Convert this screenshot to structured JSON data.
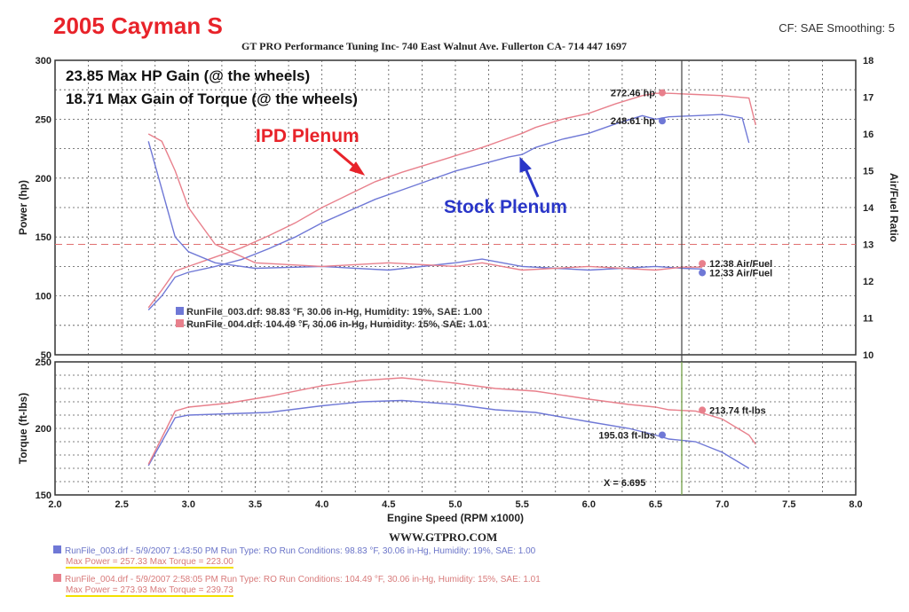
{
  "header": {
    "title": "2005 Cayman S",
    "cf_smoothing": "CF: SAE  Smoothing: 5",
    "shop": "GT PRO Performance Tuning Inc- 740 East Walnut Ave. Fullerton CA- 714 447 1697"
  },
  "annotations": {
    "hp_gain": "23.85 Max HP Gain (@ the wheels)",
    "torque_gain": "18.71 Max Gain of Torque (@ the wheels)",
    "ipd_label": "IPD Plenum",
    "stock_label": "Stock Plenum",
    "cursor": "X = 6.695"
  },
  "legend": {
    "run1": "RunFile_003.drf: 98.83 °F, 30.06 in-Hg, Humidity: 19%, SAE: 1.00",
    "run2": "RunFile_004.drf: 104.49 °F, 30.06 in-Hg, Humidity: 15%, SAE: 1.01"
  },
  "footer": {
    "website": "WWW.GTPRO.COM",
    "run1_line1": "RunFile_003.drf - 5/9/2007 1:43:50 PM  Run Type: RO  Run Conditions: 98.83 °F, 30.06 in-Hg,  Humidity: 19%,  SAE: 1.00",
    "run1_line2": "Max Power = 257.33  Max Torque = 223.00",
    "run2_line1": "RunFile_004.drf - 5/9/2007 2:58:05 PM  Run Type: RO  Run Conditions: 104.49 °F, 30.06 in-Hg,  Humidity: 15%,  SAE: 1.01",
    "run2_line2": "Max Power = 273.93  Max Torque = 239.73"
  },
  "colors": {
    "stock": "#6f78d6",
    "ipd": "#e8808c",
    "title_red": "#e8232a",
    "label_blue": "#2a36c8"
  },
  "chart_data": [
    {
      "type": "line",
      "ylabel": "Power (hp)",
      "y2label": "Air/Fuel Ratio",
      "xlim": [
        2.0,
        8.0
      ],
      "ylim": [
        50,
        300
      ],
      "y2lim": [
        10,
        18
      ],
      "y_ticks": [
        "50",
        "100",
        "150",
        "200",
        "250",
        "300"
      ],
      "y2_ticks": [
        "10",
        "11",
        "12",
        "13",
        "14",
        "15",
        "16",
        "17",
        "18"
      ],
      "grid": true,
      "series": [
        {
          "name": "Stock Plenum",
          "color": "#6f78d6",
          "x": [
            2.7,
            2.8,
            2.9,
            3.0,
            3.2,
            3.4,
            3.6,
            3.8,
            4.0,
            4.2,
            4.4,
            4.6,
            4.8,
            5.0,
            5.2,
            5.4,
            5.5,
            5.6,
            5.8,
            6.0,
            6.2,
            6.4,
            6.5,
            6.6,
            6.8,
            7.0,
            7.15,
            7.2
          ],
          "y": [
            88,
            100,
            116,
            120,
            125,
            131,
            140,
            150,
            162,
            172,
            182,
            190,
            198,
            206,
            212,
            218,
            220,
            226,
            233,
            238,
            246,
            253,
            250,
            252,
            253,
            254,
            251,
            230
          ]
        },
        {
          "name": "IPD Plenum",
          "color": "#e8808c",
          "x": [
            2.7,
            2.8,
            2.9,
            3.0,
            3.2,
            3.4,
            3.6,
            3.8,
            4.0,
            4.2,
            4.4,
            4.6,
            4.8,
            5.0,
            5.2,
            5.4,
            5.5,
            5.6,
            5.8,
            6.0,
            6.2,
            6.4,
            6.5,
            6.6,
            6.8,
            7.0,
            7.2,
            7.25
          ],
          "y": [
            90,
            105,
            121,
            125,
            133,
            141,
            151,
            162,
            175,
            186,
            197,
            205,
            212,
            219,
            226,
            234,
            238,
            243,
            250,
            255,
            263,
            270,
            272,
            272,
            271,
            270,
            268,
            245
          ]
        },
        {
          "name": "Stock Air/Fuel",
          "axis": "y2",
          "color": "#6f78d6",
          "x": [
            2.7,
            2.8,
            2.9,
            3.0,
            3.2,
            3.5,
            4.0,
            4.5,
            5.0,
            5.2,
            5.5,
            6.0,
            6.5,
            6.7,
            6.85
          ],
          "y": [
            15.8,
            14.5,
            13.2,
            12.8,
            12.5,
            12.35,
            12.4,
            12.3,
            12.5,
            12.6,
            12.4,
            12.3,
            12.4,
            12.35,
            12.33
          ]
        },
        {
          "name": "IPD Air/Fuel",
          "axis": "y2",
          "color": "#e8808c",
          "x": [
            2.7,
            2.8,
            2.9,
            3.0,
            3.2,
            3.5,
            4.0,
            4.5,
            5.0,
            5.2,
            5.5,
            6.0,
            6.5,
            6.7,
            6.85
          ],
          "y": [
            16.0,
            15.8,
            15.0,
            14.0,
            13.0,
            12.5,
            12.4,
            12.5,
            12.4,
            12.5,
            12.3,
            12.4,
            12.3,
            12.38,
            12.38
          ]
        }
      ],
      "reference_line": {
        "axis": "y2",
        "value": 13.0
      },
      "end_labels": [
        {
          "text": "272.46 hp",
          "x": 6.55,
          "y": 272.46,
          "axis": "y"
        },
        {
          "text": "248.61 hp",
          "x": 6.55,
          "y": 248.61,
          "axis": "y"
        },
        {
          "text": "12.38 Air/Fuel",
          "x": 6.85,
          "y": 12.48,
          "axis": "y2"
        },
        {
          "text": "12.33 Air/Fuel",
          "x": 6.85,
          "y": 12.23,
          "axis": "y2"
        }
      ]
    },
    {
      "type": "line",
      "ylabel": "Torque (ft-lbs)",
      "xlabel": "Engine Speed (RPM x1000)",
      "xlim": [
        2.0,
        8.0
      ],
      "ylim": [
        150,
        250
      ],
      "x_ticks": [
        "2.0",
        "2.5",
        "3.0",
        "3.5",
        "4.0",
        "4.5",
        "5.0",
        "5.5",
        "6.0",
        "6.5",
        "7.0",
        "7.5",
        "8.0"
      ],
      "y_ticks": [
        "150",
        "200",
        "250"
      ],
      "grid": true,
      "series": [
        {
          "name": "Stock Plenum",
          "color": "#6f78d6",
          "x": [
            2.7,
            2.8,
            2.9,
            3.0,
            3.3,
            3.6,
            4.0,
            4.3,
            4.6,
            5.0,
            5.3,
            5.6,
            6.0,
            6.3,
            6.5,
            6.6,
            6.8,
            7.0,
            7.2
          ],
          "y": [
            172,
            190,
            208,
            210,
            211,
            212,
            217,
            220,
            221,
            218,
            214,
            212,
            205,
            200,
            195,
            192,
            190,
            182,
            170
          ]
        },
        {
          "name": "IPD Plenum",
          "color": "#e8808c",
          "x": [
            2.7,
            2.8,
            2.9,
            3.0,
            3.3,
            3.6,
            4.0,
            4.3,
            4.6,
            5.0,
            5.3,
            5.6,
            6.0,
            6.3,
            6.5,
            6.6,
            6.8,
            7.0,
            7.2,
            7.25
          ],
          "y": [
            173,
            193,
            213,
            216,
            219,
            224,
            232,
            236,
            238,
            234,
            230,
            228,
            222,
            218,
            216,
            214,
            213,
            207,
            195,
            188
          ]
        }
      ],
      "end_labels": [
        {
          "text": "213.74 ft-lbs",
          "x": 6.85,
          "y": 213.74
        },
        {
          "text": "195.03 ft-lbs",
          "x": 6.55,
          "y": 195.03
        }
      ]
    }
  ]
}
